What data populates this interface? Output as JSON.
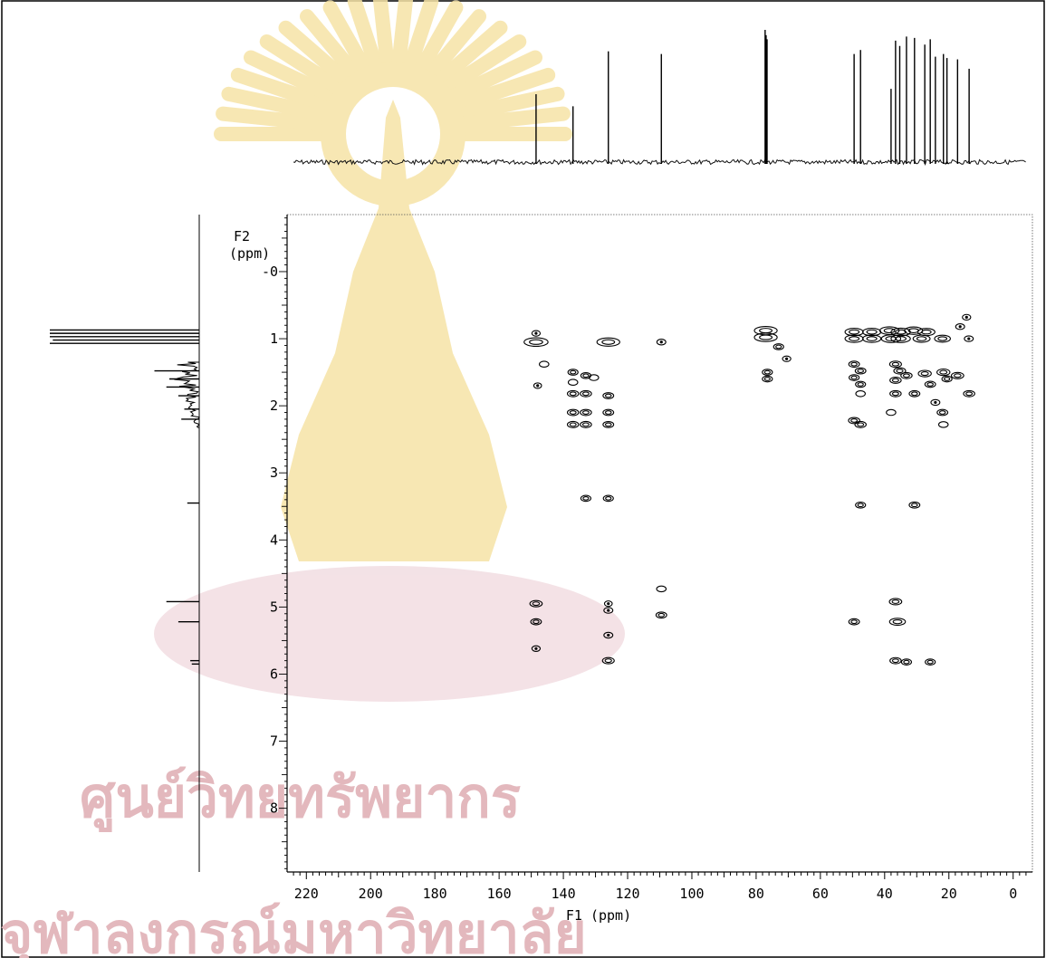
{
  "watermark": {
    "line1": "ศูนย์วิทยทรัพยากร",
    "line2": "จุฬาลงกรณ์มหาวิทยาลัย"
  },
  "chart_data": {
    "type": "heatmap",
    "title": "",
    "xlabel": "F1 (ppm)",
    "ylabel_line1": "F2",
    "ylabel_line2": "(ppm)",
    "xlim": [
      226,
      -6
    ],
    "ylim": [
      -0.85,
      8.95
    ],
    "x_ticks": [
      "220",
      "200",
      "180",
      "160",
      "140",
      "120",
      "100",
      "80",
      "60",
      "40",
      "20",
      "0"
    ],
    "x_tick_values": [
      220,
      200,
      180,
      160,
      140,
      120,
      100,
      80,
      60,
      40,
      20,
      0
    ],
    "y_ticks": [
      "-0",
      "1",
      "2",
      "3",
      "4",
      "5",
      "6",
      "7",
      "8"
    ],
    "y_tick_values": [
      0,
      1,
      2,
      3,
      4,
      5,
      6,
      7,
      8
    ],
    "f1_projection_peaks_ppm": [
      148.5,
      137.0,
      126.0,
      109.5,
      77.2,
      76.9,
      76.6,
      49.5,
      47.5,
      38.0,
      36.6,
      35.3,
      33.2,
      30.7,
      27.5,
      25.8,
      24.2,
      21.7,
      20.6,
      17.3,
      13.7
    ],
    "f1_projection_heights": [
      0.52,
      0.43,
      0.84,
      0.82,
      1.0,
      0.96,
      0.93,
      0.82,
      0.85,
      0.56,
      0.92,
      0.88,
      0.95,
      0.94,
      0.89,
      0.93,
      0.8,
      0.82,
      0.79,
      0.78,
      0.71
    ],
    "f2_projection_peaks_ppm": [
      0.87,
      0.92,
      0.97,
      1.02,
      1.07,
      1.48,
      1.6,
      1.72,
      1.85,
      2.05,
      2.2,
      3.45,
      4.92,
      5.22,
      5.8,
      5.85
    ],
    "f2_projection_heights": [
      1.0,
      1.0,
      1.0,
      0.98,
      1.0,
      0.3,
      0.2,
      0.22,
      0.14,
      0.1,
      0.12,
      0.08,
      0.22,
      0.14,
      0.06,
      0.05
    ],
    "cross_peaks": [
      {
        "f1": 148.5,
        "f2": 1.05,
        "w": 3.2
      },
      {
        "f1": 126.0,
        "f2": 1.05,
        "w": 3.0
      },
      {
        "f1": 109.5,
        "f2": 1.05,
        "w": 0.6
      },
      {
        "f1": 148.5,
        "f2": 0.92,
        "w": 0.5
      },
      {
        "f1": 146.0,
        "f2": 1.38,
        "w": 0.7
      },
      {
        "f1": 148.0,
        "f2": 1.7,
        "w": 0.4
      },
      {
        "f1": 137.0,
        "f2": 1.5,
        "w": 0.8
      },
      {
        "f1": 133.0,
        "f2": 1.55,
        "w": 0.8
      },
      {
        "f1": 130.5,
        "f2": 1.58,
        "w": 0.7
      },
      {
        "f1": 137.0,
        "f2": 1.65,
        "w": 0.7
      },
      {
        "f1": 133.0,
        "f2": 1.82,
        "w": 1.0
      },
      {
        "f1": 137.0,
        "f2": 1.82,
        "w": 1.0
      },
      {
        "f1": 126.0,
        "f2": 1.85,
        "w": 0.9
      },
      {
        "f1": 137.0,
        "f2": 2.1,
        "w": 1.0
      },
      {
        "f1": 133.0,
        "f2": 2.1,
        "w": 1.0
      },
      {
        "f1": 126.0,
        "f2": 2.1,
        "w": 0.9
      },
      {
        "f1": 137.0,
        "f2": 2.28,
        "w": 1.0
      },
      {
        "f1": 133.0,
        "f2": 2.28,
        "w": 1.0
      },
      {
        "f1": 126.0,
        "f2": 2.28,
        "w": 0.9
      },
      {
        "f1": 133.0,
        "f2": 3.38,
        "w": 0.8
      },
      {
        "f1": 126.0,
        "f2": 3.38,
        "w": 0.8
      },
      {
        "f1": 148.5,
        "f2": 4.95,
        "w": 1.2
      },
      {
        "f1": 126.0,
        "f2": 4.95,
        "w": 0.4
      },
      {
        "f1": 109.5,
        "f2": 4.73,
        "w": 0.7
      },
      {
        "f1": 148.5,
        "f2": 5.22,
        "w": 0.9
      },
      {
        "f1": 126.0,
        "f2": 5.05,
        "w": 0.6
      },
      {
        "f1": 109.5,
        "f2": 5.12,
        "w": 0.9
      },
      {
        "f1": 126.0,
        "f2": 5.42,
        "w": 0.6
      },
      {
        "f1": 148.5,
        "f2": 5.62,
        "w": 0.5
      },
      {
        "f1": 126.0,
        "f2": 5.8,
        "w": 1.1
      },
      {
        "f1": 77.0,
        "f2": 0.88,
        "w": 3.0
      },
      {
        "f1": 77.0,
        "f2": 0.98,
        "w": 3.0
      },
      {
        "f1": 73.0,
        "f2": 1.12,
        "w": 0.8
      },
      {
        "f1": 70.5,
        "f2": 1.3,
        "w": 0.5
      },
      {
        "f1": 76.5,
        "f2": 1.5,
        "w": 0.8
      },
      {
        "f1": 76.5,
        "f2": 1.6,
        "w": 0.8
      },
      {
        "f1": 49.5,
        "f2": 0.9,
        "w": 2.2
      },
      {
        "f1": 44.0,
        "f2": 0.9,
        "w": 2.2
      },
      {
        "f1": 38.5,
        "f2": 0.88,
        "w": 2.4
      },
      {
        "f1": 35.0,
        "f2": 0.9,
        "w": 2.4
      },
      {
        "f1": 31.0,
        "f2": 0.88,
        "w": 2.2
      },
      {
        "f1": 27.0,
        "f2": 0.9,
        "w": 2.0
      },
      {
        "f1": 49.5,
        "f2": 1.0,
        "w": 2.2
      },
      {
        "f1": 44.0,
        "f2": 1.0,
        "w": 2.2
      },
      {
        "f1": 38.0,
        "f2": 1.0,
        "w": 2.4
      },
      {
        "f1": 35.0,
        "f2": 1.0,
        "w": 2.4
      },
      {
        "f1": 28.5,
        "f2": 1.0,
        "w": 2.0
      },
      {
        "f1": 22.0,
        "f2": 1.0,
        "w": 1.8
      },
      {
        "f1": 16.5,
        "f2": 0.82,
        "w": 0.6
      },
      {
        "f1": 14.5,
        "f2": 0.68,
        "w": 0.5
      },
      {
        "f1": 13.8,
        "f2": 1.0,
        "w": 0.6
      },
      {
        "f1": 49.5,
        "f2": 1.38,
        "w": 0.9
      },
      {
        "f1": 47.5,
        "f2": 1.48,
        "w": 0.9
      },
      {
        "f1": 49.5,
        "f2": 1.58,
        "w": 0.8
      },
      {
        "f1": 47.5,
        "f2": 1.68,
        "w": 0.8
      },
      {
        "f1": 36.6,
        "f2": 1.38,
        "w": 1.1
      },
      {
        "f1": 35.3,
        "f2": 1.48,
        "w": 1.1
      },
      {
        "f1": 33.2,
        "f2": 1.55,
        "w": 1.0
      },
      {
        "f1": 36.6,
        "f2": 1.62,
        "w": 1.0
      },
      {
        "f1": 27.5,
        "f2": 1.52,
        "w": 1.3
      },
      {
        "f1": 21.7,
        "f2": 1.5,
        "w": 1.3
      },
      {
        "f1": 17.3,
        "f2": 1.55,
        "w": 1.2
      },
      {
        "f1": 25.8,
        "f2": 1.68,
        "w": 0.9
      },
      {
        "f1": 20.6,
        "f2": 1.6,
        "w": 0.8
      },
      {
        "f1": 36.6,
        "f2": 1.82,
        "w": 1.0
      },
      {
        "f1": 30.7,
        "f2": 1.82,
        "w": 0.9
      },
      {
        "f1": 47.5,
        "f2": 1.82,
        "w": 0.7
      },
      {
        "f1": 24.2,
        "f2": 1.95,
        "w": 0.6
      },
      {
        "f1": 13.7,
        "f2": 1.82,
        "w": 1.0
      },
      {
        "f1": 22.0,
        "f2": 2.1,
        "w": 0.9
      },
      {
        "f1": 49.5,
        "f2": 2.22,
        "w": 1.0
      },
      {
        "f1": 47.5,
        "f2": 2.28,
        "w": 1.0
      },
      {
        "f1": 38.0,
        "f2": 2.1,
        "w": 0.7
      },
      {
        "f1": 21.7,
        "f2": 2.28,
        "w": 0.7
      },
      {
        "f1": 47.5,
        "f2": 3.48,
        "w": 0.8
      },
      {
        "f1": 30.7,
        "f2": 3.48,
        "w": 0.9
      },
      {
        "f1": 36.6,
        "f2": 4.92,
        "w": 1.2
      },
      {
        "f1": 49.5,
        "f2": 5.22,
        "w": 0.9
      },
      {
        "f1": 36.0,
        "f2": 5.22,
        "w": 1.8
      },
      {
        "f1": 36.6,
        "f2": 5.8,
        "w": 1.0
      },
      {
        "f1": 33.2,
        "f2": 5.82,
        "w": 0.8
      },
      {
        "f1": 25.8,
        "f2": 5.82,
        "w": 0.8
      }
    ]
  }
}
